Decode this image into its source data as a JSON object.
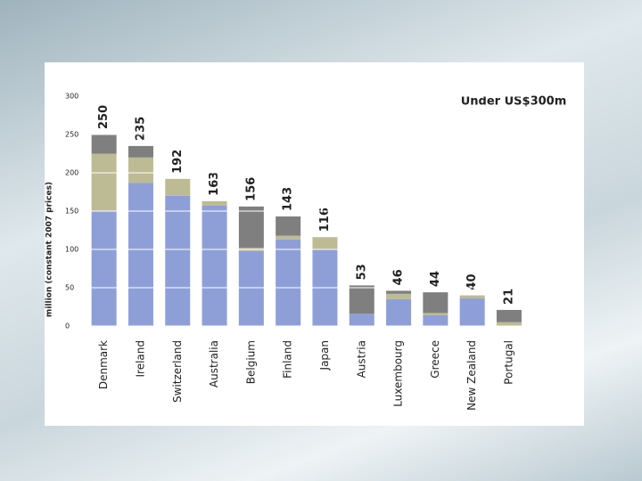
{
  "chart_data": {
    "type": "stacked_bar",
    "title": "Under US$300m",
    "y_label": "million (constant 2007 prices)",
    "categories": [
      "Denmark",
      "Ireland",
      "Switzerland",
      "Australia",
      "Belgium",
      "Finland",
      "Japan",
      "Austria",
      "Luxembourg",
      "Greece",
      "New Zealand",
      "Portugal"
    ],
    "series": [
      {
        "color": "#8e9fd8",
        "values": [
          150,
          187,
          170,
          157,
          98,
          113,
          100,
          16,
          35,
          14,
          36,
          0
        ]
      },
      {
        "color": "#bdbb93",
        "values": [
          75,
          33,
          22,
          6,
          4,
          5,
          16,
          0,
          7,
          3,
          4,
          5
        ]
      },
      {
        "color": "#7f7f80",
        "values": [
          25,
          15,
          0,
          0,
          54,
          25,
          0,
          37,
          4,
          27,
          0,
          16
        ]
      }
    ],
    "totals": [
      250,
      235,
      192,
      163,
      156,
      143,
      116,
      53,
      46,
      44,
      40,
      21
    ],
    "ylim": [
      0,
      300
    ],
    "yticks": [
      0,
      50,
      100,
      150,
      200,
      250,
      300
    ],
    "grid": true
  }
}
